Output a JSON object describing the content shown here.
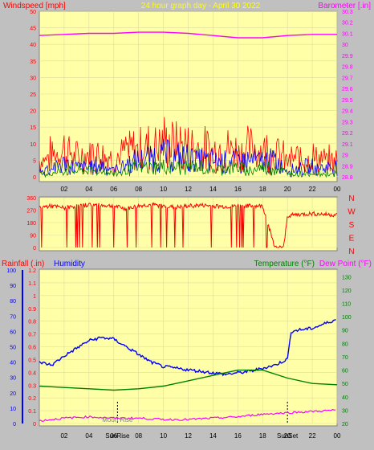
{
  "header": {
    "left_label": "Windspeed [mph]",
    "title": "24 hour graph day - April 30 2022",
    "right_label": "Barometer [.in]"
  },
  "colors": {
    "background": "#c0c0c0",
    "plot_bg": "#ffffa8",
    "red": "#ff0000",
    "blue": "#0000ff",
    "green": "#008000",
    "magenta": "#ff00ff",
    "title": "#ffff00",
    "tick": "#808080"
  },
  "panel_labels": {
    "rainfall": "Rainfall (.in)",
    "humidity": "Humidity",
    "temperature": "Temperature (°F)",
    "dewpoint": "Dew Point (°F)"
  },
  "chart_data": [
    {
      "type": "line",
      "title": "24 hour graph day - April 30 2022",
      "x_ticks": [
        "02",
        "04",
        "06",
        "08",
        "10",
        "12",
        "14",
        "16",
        "18",
        "20",
        "22",
        "00"
      ],
      "left_axis": {
        "label": "Windspeed [mph]",
        "ticks": [
          "0",
          "5",
          "10",
          "15",
          "20",
          "25",
          "30",
          "35",
          "40",
          "45",
          "50"
        ],
        "ylim": [
          0,
          50
        ]
      },
      "right_axis": {
        "label": "Barometer [.in]",
        "ticks": [
          "28.8",
          "28.9",
          "29",
          "29.1",
          "29.2",
          "29.3",
          "29.4",
          "29.5",
          "29.6",
          "29.7",
          "29.8",
          "29.9",
          "30",
          "30.1",
          "30.2",
          "30.3"
        ],
        "ylim": [
          28.8,
          30.3
        ]
      },
      "series": [
        {
          "name": "Barometer",
          "axis": "right",
          "color": "#ff00ff",
          "x": [
            0,
            2,
            4,
            6,
            8,
            10,
            12,
            14,
            16,
            18,
            20,
            22,
            24
          ],
          "y": [
            30.08,
            30.09,
            30.1,
            30.1,
            30.11,
            30.11,
            30.1,
            30.08,
            30.06,
            30.06,
            30.08,
            30.09,
            30.09
          ]
        },
        {
          "name": "Wind gust",
          "axis": "left",
          "color": "#ff0000",
          "x": [
            0,
            1,
            2,
            3,
            4,
            5,
            6,
            7,
            8,
            9,
            10,
            11,
            12,
            13,
            14,
            15,
            16,
            17,
            18,
            19,
            20,
            21,
            22,
            23,
            24
          ],
          "y": [
            5,
            7,
            9,
            6,
            7,
            8,
            5,
            8,
            9,
            10,
            11,
            10,
            10,
            9,
            8,
            9,
            8,
            9,
            9,
            8,
            5,
            6,
            6,
            5,
            5
          ]
        },
        {
          "name": "Wind speed",
          "axis": "left",
          "color": "#0000ff",
          "x": [
            0,
            1,
            2,
            3,
            4,
            5,
            6,
            7,
            8,
            9,
            10,
            11,
            12,
            13,
            14,
            15,
            16,
            17,
            18,
            19,
            20,
            21,
            22,
            23,
            24
          ],
          "y": [
            2,
            3,
            4,
            3,
            3,
            4,
            2,
            4,
            5,
            6,
            7,
            6,
            6,
            5,
            5,
            5,
            5,
            5,
            5,
            5,
            2,
            3,
            3,
            3,
            3
          ]
        },
        {
          "name": "Wind avg",
          "axis": "left",
          "color": "#008000",
          "x": [
            0,
            1,
            2,
            3,
            4,
            5,
            6,
            7,
            8,
            9,
            10,
            11,
            12,
            13,
            14,
            15,
            16,
            17,
            18,
            19,
            20,
            21,
            22,
            23,
            24
          ],
          "y": [
            1,
            1,
            2,
            2,
            2,
            2,
            1,
            2,
            3,
            3,
            3,
            3,
            3,
            3,
            2,
            3,
            3,
            2,
            3,
            3,
            1,
            1,
            1,
            1,
            1
          ]
        }
      ]
    },
    {
      "type": "line",
      "y_ticks": [
        "360",
        "270",
        "180",
        "90",
        "0"
      ],
      "y_scale": [
        0,
        360
      ],
      "compass_labels": [
        "N",
        "W",
        "S",
        "E",
        "N"
      ],
      "series": [
        {
          "name": "Wind direction",
          "color": "#ff0000",
          "x": [
            0,
            1,
            2,
            3,
            4,
            5,
            6,
            7,
            8,
            9,
            10,
            11,
            12,
            13,
            14,
            15,
            16,
            17,
            18,
            19,
            19.7,
            20,
            21,
            22,
            23,
            24
          ],
          "y": [
            290,
            300,
            285,
            300,
            310,
            305,
            300,
            280,
            300,
            310,
            300,
            290,
            300,
            305,
            300,
            295,
            300,
            300,
            300,
            0,
            0,
            230,
            240,
            245,
            240,
            235
          ]
        }
      ]
    },
    {
      "type": "line",
      "left_axes": [
        {
          "label": "Rainfall (.in)",
          "ticks": [
            "0",
            "0.1",
            "0.2",
            "0.3",
            "0.4",
            "0.5",
            "0.6",
            "0.7",
            "0.8",
            "0.9",
            "1",
            "1.1",
            "1.2"
          ],
          "ylim": [
            0,
            1.2
          ]
        },
        {
          "label": "Humidity",
          "ticks": [
            "0",
            "10",
            "20",
            "30",
            "40",
            "50",
            "60",
            "70",
            "80",
            "90",
            "100"
          ],
          "ylim": [
            0,
            100
          ]
        }
      ],
      "right_axis": {
        "label": "Temperature (°F)",
        "ticks": [
          "20",
          "30",
          "40",
          "50",
          "60",
          "70",
          "80",
          "90",
          "100",
          "110",
          "120",
          "130"
        ],
        "ylim": [
          20,
          135
        ]
      },
      "x_ticks": [
        "02",
        "04",
        "06",
        "08",
        "10",
        "12",
        "14",
        "16",
        "18",
        "20",
        "22",
        "00"
      ],
      "annotations": [
        "Moon Rise",
        "SunRise",
        "SunSet"
      ],
      "series": [
        {
          "name": "Humidity",
          "color": "#0000ff",
          "x": [
            0,
            1,
            2,
            3,
            4,
            5,
            6,
            7,
            8,
            9,
            10,
            11,
            12,
            13,
            14,
            15,
            16,
            17,
            18,
            19,
            20,
            20.3,
            21,
            22,
            23,
            24
          ],
          "y": [
            40,
            38,
            44,
            49,
            54,
            56,
            55,
            50,
            45,
            40,
            37,
            36,
            35,
            34,
            33,
            32,
            33,
            34,
            36,
            38,
            42,
            60,
            61,
            62,
            65,
            68
          ]
        },
        {
          "name": "Temperature",
          "color": "#008000",
          "x": [
            0,
            2,
            4,
            6,
            8,
            10,
            12,
            14,
            16,
            18,
            20,
            22,
            24
          ],
          "y": [
            48,
            47,
            46,
            45,
            46,
            48,
            52,
            56,
            60,
            60,
            54,
            50,
            49
          ]
        },
        {
          "name": "Dew Point",
          "color": "#ff00ff",
          "x": [
            0,
            2,
            4,
            6,
            8,
            10,
            12,
            14,
            16,
            18,
            20,
            22,
            24
          ],
          "y": [
            22,
            24,
            25,
            24,
            24,
            23,
            23,
            24,
            25,
            27,
            28,
            29,
            30
          ]
        }
      ]
    }
  ]
}
